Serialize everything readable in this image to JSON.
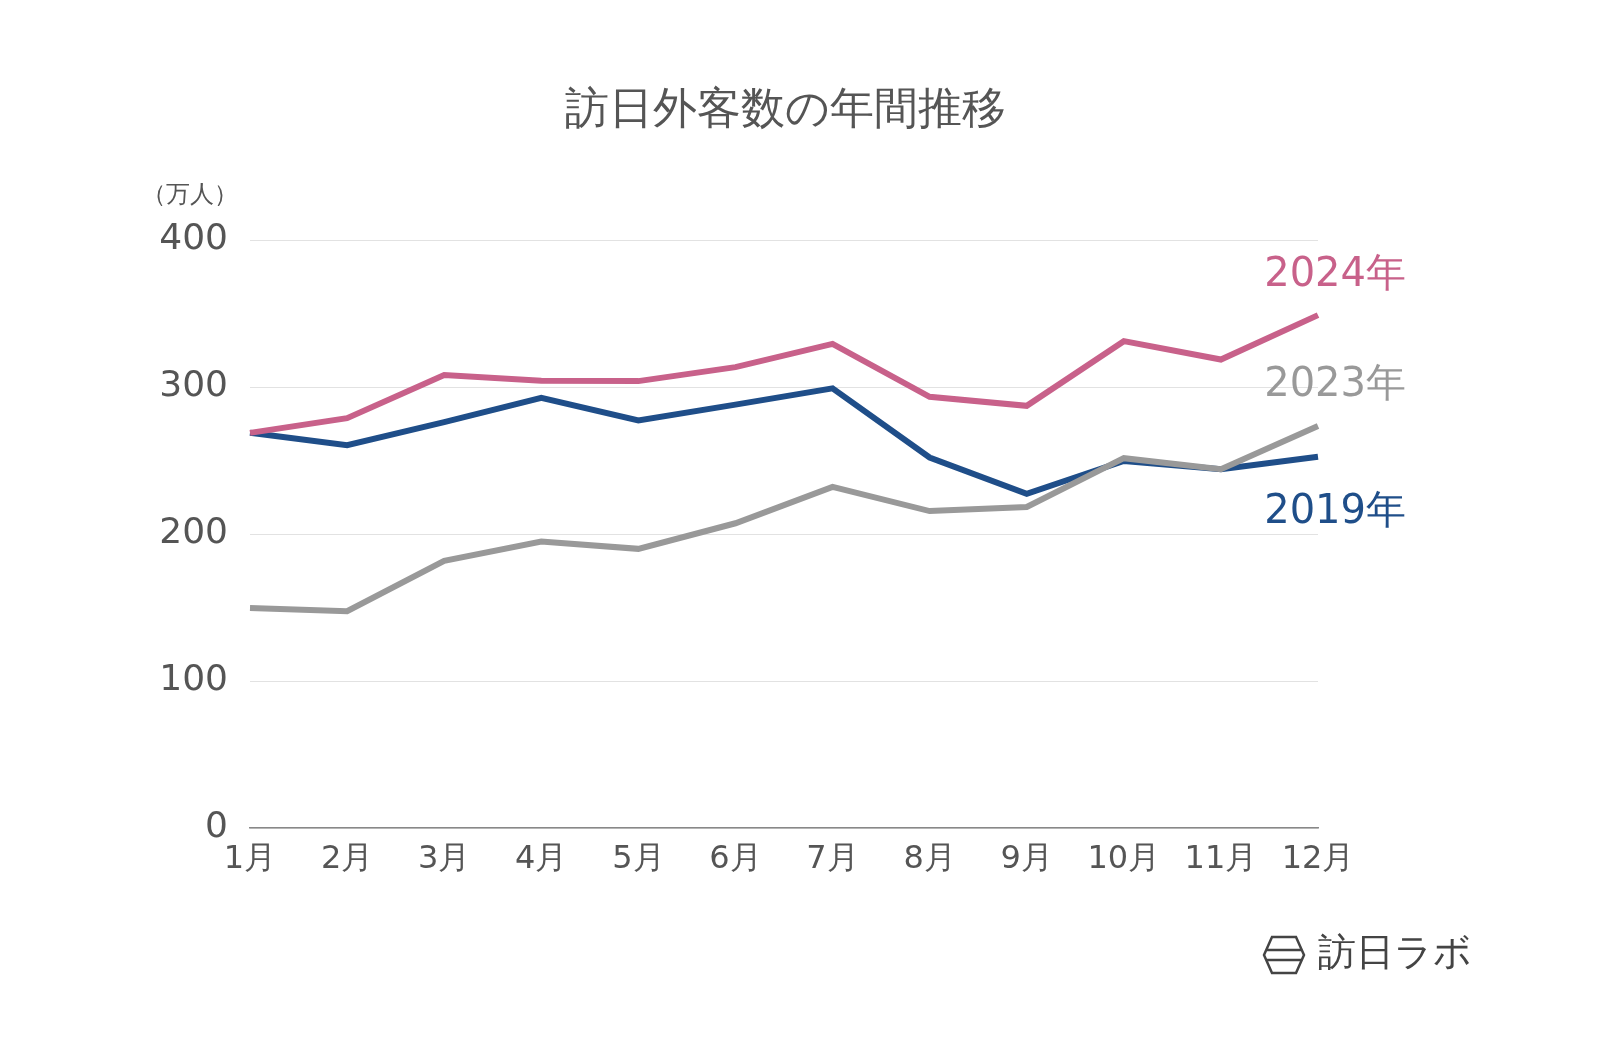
{
  "chart_data": {
    "type": "line",
    "title": "訪日外客数の年間推移",
    "y_label": "（万人）",
    "source": "訪日ラボ",
    "categories": [
      "1月",
      "2月",
      "3月",
      "4月",
      "5月",
      "6月",
      "7月",
      "8月",
      "9月",
      "10月",
      "11月",
      "12月"
    ],
    "series": [
      {
        "name": "2024年",
        "color": "#c8618a",
        "values": [
          268.8,
          278.8,
          308.2,
          304.3,
          304.0,
          313.5,
          329.3,
          293.3,
          287.2,
          331.2,
          318.7,
          348.9
        ]
      },
      {
        "name": "2023年",
        "color": "#999999",
        "values": [
          149.7,
          147.5,
          181.8,
          194.9,
          189.9,
          207.3,
          232.0,
          215.6,
          218.4,
          251.6,
          244.1,
          273.4
        ]
      },
      {
        "name": "2019年",
        "color": "#1f4e89",
        "values": [
          268.9,
          260.4,
          276.1,
          292.7,
          277.3,
          288.0,
          299.1,
          252.0,
          227.3,
          249.7,
          244.1,
          252.6
        ]
      }
    ],
    "ylim": [
      0,
      400
    ],
    "yticks": [
      0,
      100,
      200,
      300,
      400
    ],
    "grid": true
  }
}
